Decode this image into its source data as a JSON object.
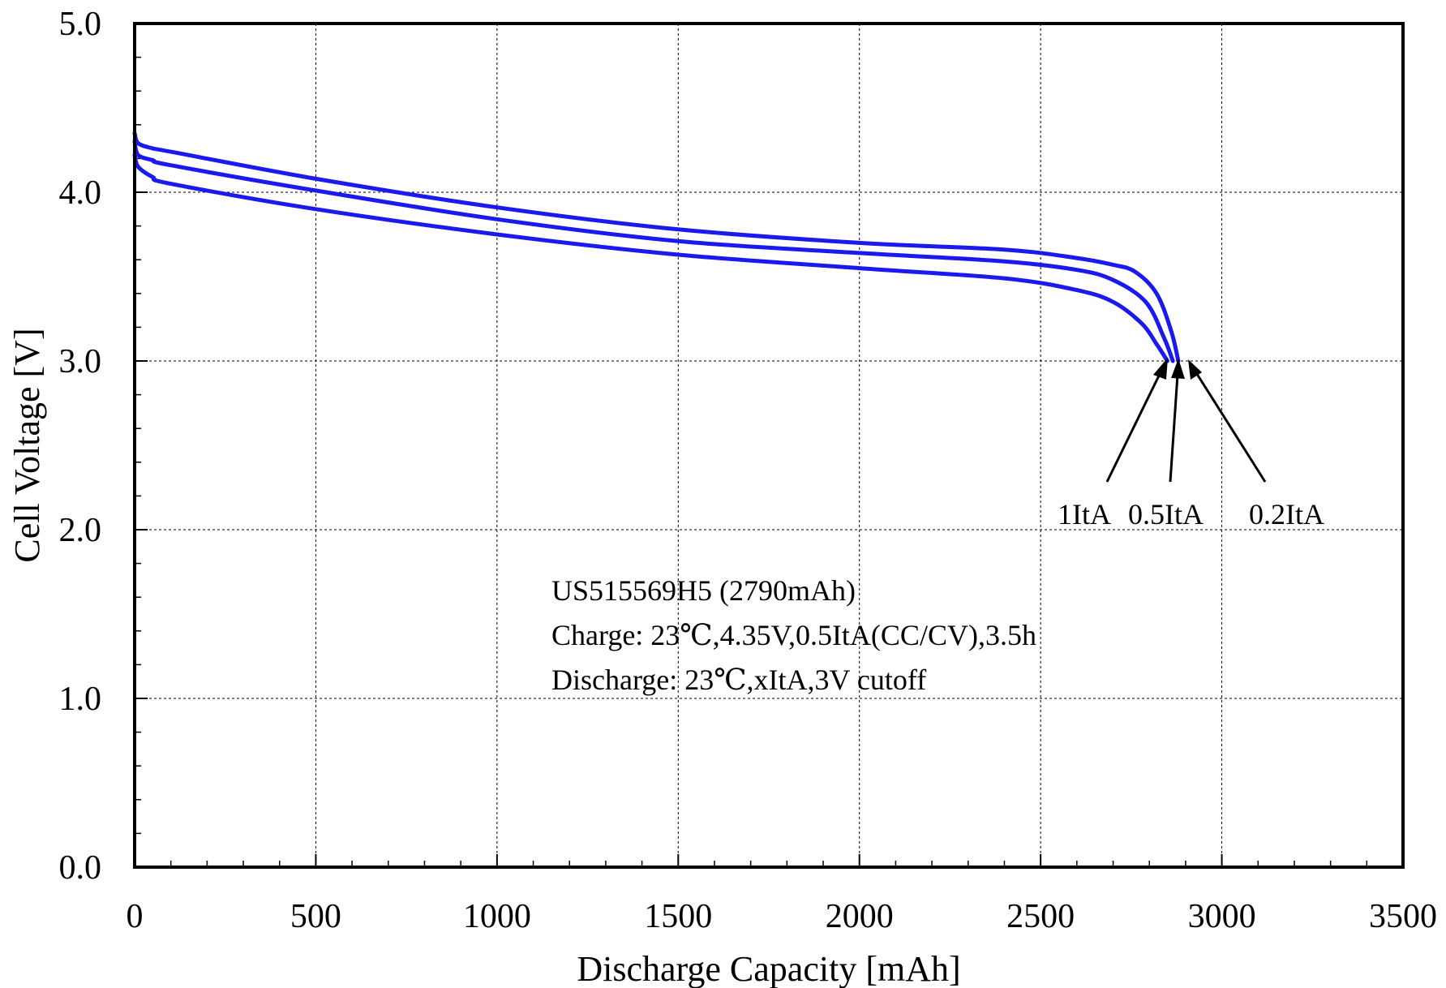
{
  "chart_data": {
    "type": "line",
    "title": "",
    "xlabel": "Discharge Capacity [mAh]",
    "ylabel": "Cell Voltage [V]",
    "xlim": [
      0,
      3500
    ],
    "ylim": [
      0.0,
      5.0
    ],
    "x_ticks": [
      "0",
      "500",
      "1000",
      "1500",
      "2000",
      "2500",
      "3000",
      "3500"
    ],
    "y_ticks": [
      "0.0",
      "1.0",
      "2.0",
      "3.0",
      "4.0",
      "5.0"
    ],
    "grid": true,
    "line_color": "#1a1aee",
    "annotation_lines": [
      "US515569H5 (2790mAh)",
      "Charge: 23℃,4.35V,0.5ItA(CC/CV),3.5h",
      "Discharge: 23℃,xItA,3V cutoff"
    ],
    "series": [
      {
        "name": "1ItA",
        "x": [
          0,
          10,
          50,
          100,
          500,
          1000,
          1500,
          2000,
          2400,
          2600,
          2700,
          2780,
          2820,
          2850
        ],
        "y": [
          4.22,
          4.15,
          4.09,
          4.05,
          3.9,
          3.75,
          3.63,
          3.55,
          3.49,
          3.42,
          3.35,
          3.22,
          3.1,
          3.0
        ]
      },
      {
        "name": "0.5ItA",
        "x": [
          0,
          10,
          50,
          100,
          500,
          1000,
          1500,
          2000,
          2400,
          2600,
          2700,
          2790,
          2840,
          2865
        ],
        "y": [
          4.3,
          4.22,
          4.19,
          4.16,
          4.01,
          3.84,
          3.71,
          3.64,
          3.59,
          3.54,
          3.48,
          3.35,
          3.14,
          3.0
        ]
      },
      {
        "name": "0.2ItA",
        "x": [
          0,
          10,
          50,
          100,
          500,
          1000,
          1500,
          2000,
          2400,
          2600,
          2700,
          2760,
          2820,
          2860,
          2880
        ],
        "y": [
          4.35,
          4.29,
          4.26,
          4.24,
          4.08,
          3.91,
          3.78,
          3.7,
          3.66,
          3.61,
          3.57,
          3.53,
          3.4,
          3.18,
          3.0
        ]
      }
    ]
  }
}
